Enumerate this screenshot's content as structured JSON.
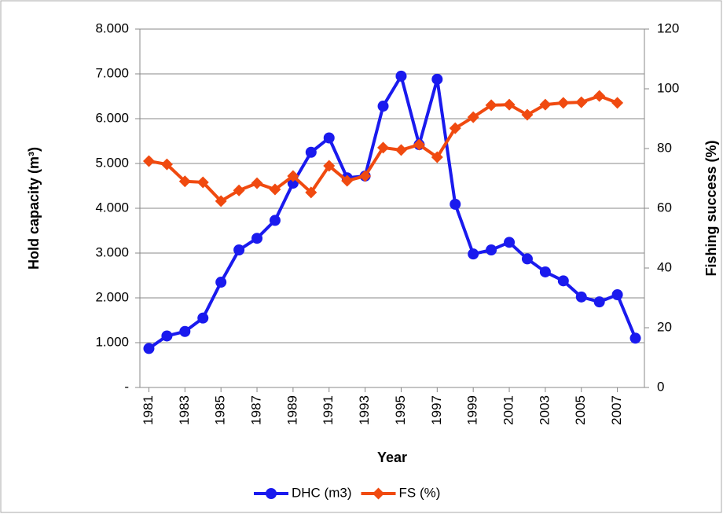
{
  "chart_data": {
    "type": "line",
    "xlabel": "Year",
    "ylabel": "Hold capacity  (m³)",
    "y2label": "Fishing success  (%)",
    "x": [
      1981,
      1982,
      1983,
      1984,
      1985,
      1986,
      1987,
      1988,
      1989,
      1990,
      1991,
      1992,
      1993,
      1994,
      1995,
      1996,
      1997,
      1998,
      1999,
      2000,
      2001,
      2002,
      2003,
      2004,
      2005,
      2006,
      2007,
      2008
    ],
    "xlim": [
      1980.5,
      2008.5
    ],
    "xticks": [
      1981,
      1983,
      1985,
      1987,
      1989,
      1991,
      1993,
      1995,
      1997,
      1999,
      2001,
      2003,
      2005,
      2007
    ],
    "ylim": [
      0,
      8000
    ],
    "yticks": [
      {
        "value": 0,
        "label": "-"
      },
      {
        "value": 1000,
        "label": "1.000"
      },
      {
        "value": 2000,
        "label": "2.000"
      },
      {
        "value": 3000,
        "label": "3.000"
      },
      {
        "value": 4000,
        "label": "4.000"
      },
      {
        "value": 5000,
        "label": "5.000"
      },
      {
        "value": 6000,
        "label": "6.000"
      },
      {
        "value": 7000,
        "label": "7.000"
      },
      {
        "value": 8000,
        "label": "8.000"
      }
    ],
    "y2lim": [
      0,
      120
    ],
    "y2ticks": [
      0,
      20,
      40,
      60,
      80,
      100,
      120
    ],
    "grid": true,
    "legend": "bottom",
    "series": [
      {
        "name": "DHC (m3)",
        "color": "#1a1aee",
        "marker": "circle",
        "values": [
          870,
          1150,
          1250,
          1550,
          2350,
          3070,
          3330,
          3730,
          4560,
          5250,
          5570,
          4680,
          4720,
          6280,
          6950,
          5420,
          6880,
          4090,
          2980,
          3070,
          3240,
          2870,
          2580,
          2380,
          2020,
          1910,
          2070,
          1100
        ]
      },
      {
        "name": "FS (%)",
        "color": "#f04a10",
        "marker": "diamond",
        "axis": "y2",
        "values": [
          75.8,
          74.7,
          69,
          68.7,
          62.4,
          66,
          68.4,
          66.3,
          70.8,
          65.3,
          74.2,
          69.2,
          70.8,
          80.3,
          79.5,
          81.3,
          77.1,
          86.8,
          90.5,
          94.5,
          94.7,
          91.3,
          94.7,
          95.3,
          95.5,
          97.6,
          95.3,
          null
        ]
      }
    ]
  }
}
